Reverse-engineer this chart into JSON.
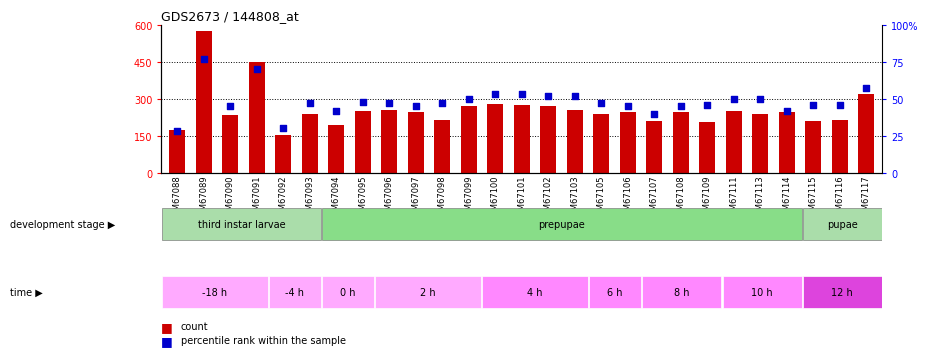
{
  "title": "GDS2673 / 144808_at",
  "samples": [
    "GSM67088",
    "GSM67089",
    "GSM67090",
    "GSM67091",
    "GSM67092",
    "GSM67093",
    "GSM67094",
    "GSM67095",
    "GSM67096",
    "GSM67097",
    "GSM67098",
    "GSM67099",
    "GSM67100",
    "GSM67101",
    "GSM67102",
    "GSM67103",
    "GSM67105",
    "GSM67106",
    "GSM67107",
    "GSM67108",
    "GSM67109",
    "GSM67111",
    "GSM67113",
    "GSM67114",
    "GSM67115",
    "GSM67116",
    "GSM67117"
  ],
  "counts": [
    175,
    575,
    235,
    450,
    155,
    240,
    195,
    250,
    255,
    245,
    215,
    270,
    280,
    275,
    270,
    255,
    240,
    245,
    210,
    245,
    205,
    250,
    240,
    245,
    210,
    215,
    320
  ],
  "percentiles": [
    28,
    77,
    45,
    70,
    30,
    47,
    42,
    48,
    47,
    45,
    47,
    50,
    53,
    53,
    52,
    52,
    47,
    45,
    40,
    45,
    46,
    50,
    50,
    42,
    46,
    46,
    57
  ],
  "ylim_left": [
    0,
    600
  ],
  "ylim_right": [
    0,
    100
  ],
  "yticks_left": [
    0,
    150,
    300,
    450,
    600
  ],
  "yticks_right": [
    0,
    25,
    50,
    75,
    100
  ],
  "bar_color": "#cc0000",
  "dot_color": "#0000cc",
  "background_color": "#ffffff",
  "dev_stages": [
    {
      "label": "third instar larvae",
      "start": 0,
      "end": 6,
      "color": "#aaddaa"
    },
    {
      "label": "prepupae",
      "start": 6,
      "end": 24,
      "color": "#88dd88"
    },
    {
      "label": "pupae",
      "start": 24,
      "end": 27,
      "color": "#aaddaa"
    }
  ],
  "time_entries": [
    {
      "label": "-18 h",
      "start": 0,
      "end": 4,
      "color": "#ffaaff"
    },
    {
      "label": "-4 h",
      "start": 4,
      "end": 6,
      "color": "#ffaaff"
    },
    {
      "label": "0 h",
      "start": 6,
      "end": 8,
      "color": "#ffaaff"
    },
    {
      "label": "2 h",
      "start": 8,
      "end": 12,
      "color": "#ffaaff"
    },
    {
      "label": "4 h",
      "start": 12,
      "end": 16,
      "color": "#ff88ff"
    },
    {
      "label": "6 h",
      "start": 16,
      "end": 18,
      "color": "#ff88ff"
    },
    {
      "label": "8 h",
      "start": 18,
      "end": 21,
      "color": "#ff88ff"
    },
    {
      "label": "10 h",
      "start": 21,
      "end": 24,
      "color": "#ff88ff"
    },
    {
      "label": "12 h",
      "start": 24,
      "end": 27,
      "color": "#dd44dd"
    }
  ],
  "legend_items": [
    {
      "label": "count",
      "color": "#cc0000",
      "marker": "s"
    },
    {
      "label": "percentile rank within the sample",
      "color": "#0000cc",
      "marker": "s"
    }
  ]
}
